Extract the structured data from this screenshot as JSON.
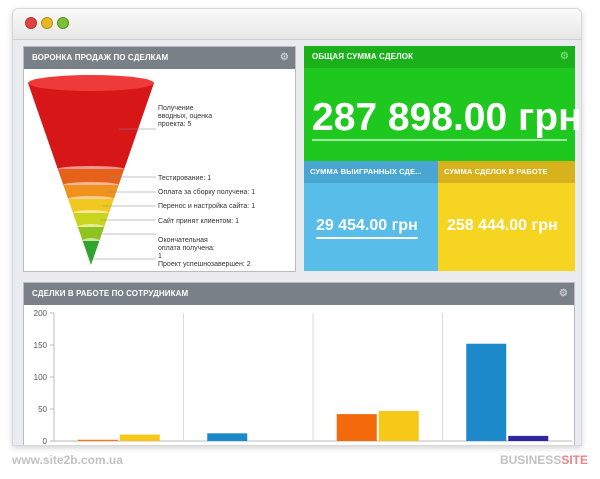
{
  "funnel_panel": {
    "title": "ВОРОНКА ПРОДАЖ ПО СДЕЛКАМ",
    "settings_icon": "gear-icon",
    "stages": [
      {
        "label": "Получение\nвводных, оценка\nпроекта: 5",
        "color": "#d71717"
      },
      {
        "label": "Тестирование: 1",
        "color": "#e6621b"
      },
      {
        "label": "Оплата за сборку получена: 1",
        "color": "#f0921c"
      },
      {
        "label": "Перенос и настройка сайта: 1",
        "color": "#f0c820"
      },
      {
        "label": "Сайт принят клиентом: 1",
        "color": "#c9d41c"
      },
      {
        "label": "Окончательная\nоплата получена:\n1",
        "color": "#8fc41f"
      },
      {
        "label": "Проект успешнозавершен: 2",
        "color": "#2fa52f"
      }
    ]
  },
  "total_panel": {
    "title": "ОБЩАЯ СУММА СДЕЛОК",
    "value": "287 898.00 грн"
  },
  "won_panel": {
    "title": "СУММА ВЫИГРАННЫХ СДЕ...",
    "value": "29 454.00 грн"
  },
  "work_panel": {
    "title": "СУММА СДЕЛОК В РАБОТЕ",
    "value": "258 444.00 грн"
  },
  "chart_panel": {
    "title": "СДЕЛКИ В РАБОТЕ ПО СОТРУДНИКАМ"
  },
  "chart_data": {
    "type": "bar",
    "title": "",
    "xlabel": "",
    "ylabel": "",
    "ylim": [
      0,
      200
    ],
    "yticks": [
      0,
      50,
      100,
      150,
      200
    ],
    "grid": false,
    "categories": [
      "",
      "",
      "",
      ""
    ],
    "series": [
      {
        "values": [
          2,
          12,
          42,
          152
        ],
        "color_by_group": [
          "#f07a1a",
          "#1a88c9",
          "#f26a0c",
          "#1a88c9"
        ]
      },
      {
        "values": [
          10,
          0,
          47,
          8
        ],
        "color_by_group": [
          "#f6c817",
          "#f6c817",
          "#f6c817",
          "#3026a0"
        ]
      }
    ]
  },
  "footer": {
    "url": "www.site2b.com.ua",
    "brand_main": "BUSINESS",
    "brand_accent": "SITE"
  }
}
